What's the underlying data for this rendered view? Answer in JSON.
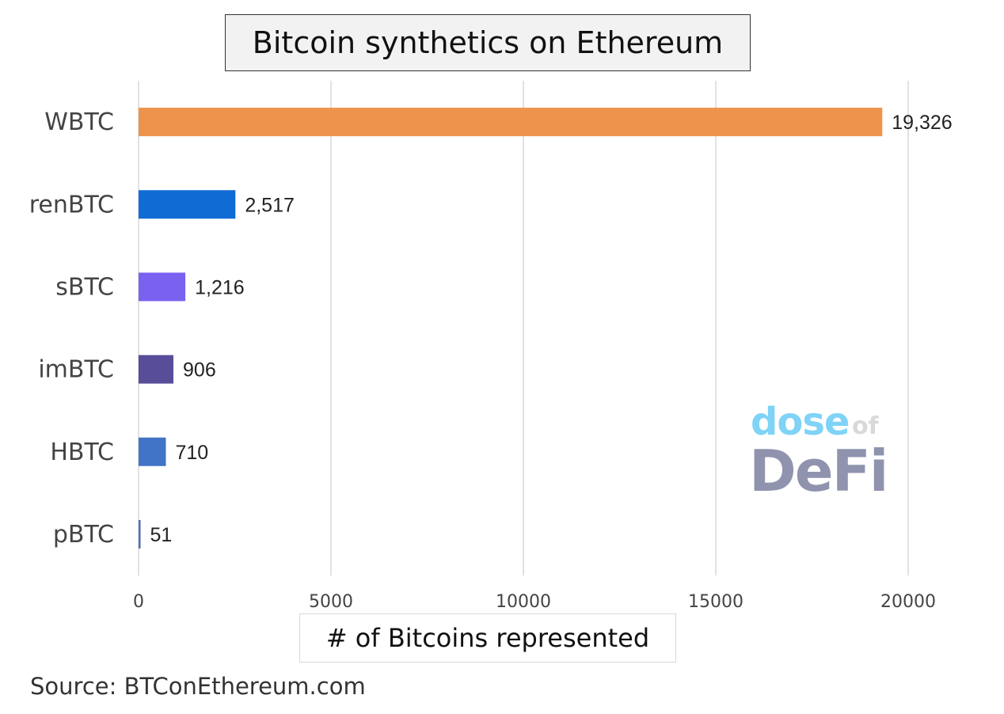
{
  "chart_data": {
    "type": "bar",
    "orientation": "horizontal",
    "title": "Bitcoin synthetics on Ethereum",
    "xlabel": "# of Bitcoins represented",
    "ylabel": "",
    "categories": [
      "WBTC",
      "renBTC",
      "sBTC",
      "imBTC",
      "HBTC",
      "pBTC"
    ],
    "values": [
      19326,
      2517,
      1216,
      906,
      710,
      51
    ],
    "data_labels": [
      "19,326",
      "2,517",
      "1,216",
      "906",
      "710",
      "51"
    ],
    "colors": [
      "#ee934b",
      "#116bd4",
      "#7b61f0",
      "#574d98",
      "#4173c6",
      "#4a6fb0"
    ],
    "xlim": [
      0,
      20000
    ],
    "xticks": [
      "0",
      "5000",
      "10000",
      "15000",
      "20000"
    ],
    "grid": true,
    "legend": "none"
  },
  "source": "Source: BTConEthereum.com",
  "logo": {
    "line1": "dose",
    "line1_small": "of",
    "line2": "DeFi"
  }
}
